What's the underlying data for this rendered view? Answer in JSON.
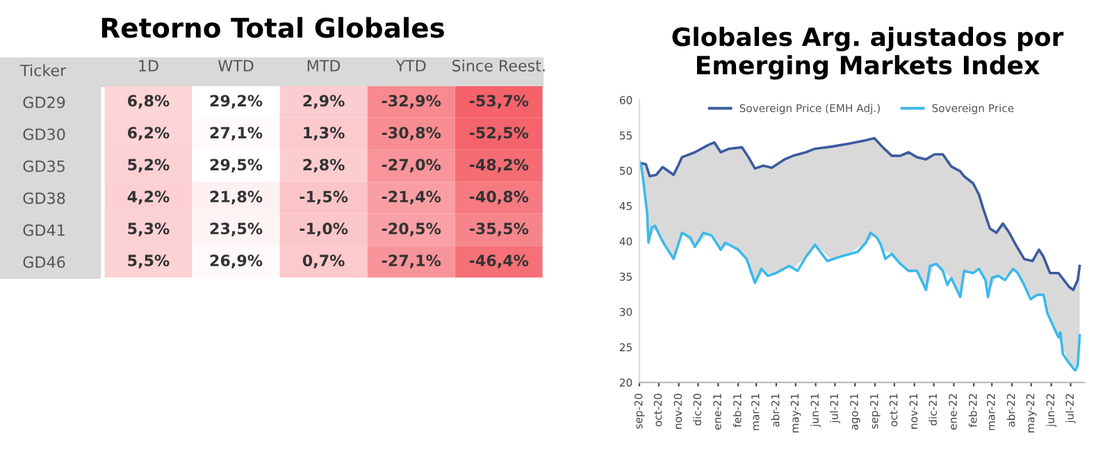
{
  "chart_data": [
    {
      "type": "heatmap",
      "title": "Retorno Total Globales",
      "ylabel": "Ticker",
      "categories": [
        "1D",
        "WTD",
        "MTD",
        "YTD",
        "Since Reest."
      ],
      "y_categories": [
        "GD29",
        "GD30",
        "GD35",
        "GD38",
        "GD41",
        "GD46"
      ],
      "cells": [
        [
          6.8,
          29.2,
          2.9,
          -32.9,
          -53.7
        ],
        [
          6.2,
          27.1,
          1.3,
          -30.8,
          -52.5
        ],
        [
          5.2,
          29.5,
          2.8,
          -27.0,
          -48.2
        ],
        [
          4.2,
          21.8,
          -1.5,
          -21.4,
          -40.8
        ],
        [
          5.3,
          23.5,
          -1.0,
          -20.5,
          -35.5
        ],
        [
          5.5,
          26.9,
          0.7,
          -27.1,
          -46.4
        ]
      ],
      "cell_labels": [
        [
          "6,8%",
          "29,2%",
          "2,9%",
          "-32,9%",
          "-53,7%"
        ],
        [
          "6,2%",
          "27,1%",
          "1,3%",
          "-30,8%",
          "-52,5%"
        ],
        [
          "5,2%",
          "29,5%",
          "2,8%",
          "-27,0%",
          "-48,2%"
        ],
        [
          "4,2%",
          "21,8%",
          "-1,5%",
          "-21,4%",
          "-40,8%"
        ],
        [
          "5,3%",
          "23,5%",
          "-1,0%",
          "-20,5%",
          "-35,5%"
        ],
        [
          "5,5%",
          "26,9%",
          "0,7%",
          "-27,1%",
          "-46,4%"
        ]
      ],
      "colors": [
        "#f5626a",
        "#ffffff"
      ]
    },
    {
      "type": "line",
      "title": "Globales Arg. ajustados por\nEmerging Markets Index",
      "legend": "top",
      "grid": false,
      "xlim": [
        "2020-09-01",
        "2022-07-22"
      ],
      "ylim": [
        20,
        60
      ],
      "yticks": [
        20,
        25,
        30,
        35,
        40,
        45,
        50,
        55,
        60
      ],
      "xticks": [
        {
          "value": "2020-09-01",
          "label": "sep-20"
        },
        {
          "value": "2020-10-01",
          "label": "oct-20"
        },
        {
          "value": "2020-11-01",
          "label": "nov-20"
        },
        {
          "value": "2020-12-01",
          "label": "dic-20"
        },
        {
          "value": "2021-01-01",
          "label": "ene-21"
        },
        {
          "value": "2021-02-01",
          "label": "feb-21"
        },
        {
          "value": "2021-03-01",
          "label": "mar-21"
        },
        {
          "value": "2021-04-01",
          "label": "abr-21"
        },
        {
          "value": "2021-05-01",
          "label": "may-21"
        },
        {
          "value": "2021-06-01",
          "label": "jun-21"
        },
        {
          "value": "2021-07-01",
          "label": "jul-21"
        },
        {
          "value": "2021-08-01",
          "label": "ago-21"
        },
        {
          "value": "2021-09-01",
          "label": "sep-21"
        },
        {
          "value": "2021-10-01",
          "label": "oct-21"
        },
        {
          "value": "2021-11-01",
          "label": "nov-21"
        },
        {
          "value": "2021-12-01",
          "label": "dic-21"
        },
        {
          "value": "2022-01-01",
          "label": "ene-22"
        },
        {
          "value": "2022-02-01",
          "label": "feb-22"
        },
        {
          "value": "2022-03-01",
          "label": "mar-22"
        },
        {
          "value": "2022-04-01",
          "label": "abr-22"
        },
        {
          "value": "2022-05-01",
          "label": "may-22"
        },
        {
          "value": "2022-06-01",
          "label": "jun-22"
        },
        {
          "value": "2022-07-01",
          "label": "jul-22"
        }
      ],
      "series": [
        {
          "name": "Sovereign Price (EMH Adj.)",
          "color": "#3b5b9e",
          "lower": [
            51.3,
            44.5,
            40.6,
            41.8,
            40.0,
            37.5,
            39.3,
            41.2,
            39.2,
            41.0,
            40.3,
            38.8,
            39.5,
            38.2,
            37.2,
            34.1,
            35.8,
            35.3,
            36.2,
            36.1,
            37.8,
            39.5,
            37.4,
            38.2,
            39.8,
            40.8,
            38.7,
            38.2,
            36.8,
            35.8,
            35.8,
            33.1,
            36.7,
            35.8,
            34.8,
            32.1,
            35.8,
            35.5,
            36.1,
            35.0,
            33.0,
            35.0,
            34.7,
            35.6,
            35.8,
            33.8,
            32.0,
            32.4,
            32.4,
            28.8,
            26.4,
            22.7,
            22.0,
            22.4,
            26.7
          ],
          "upper": [
            51.1,
            50.9,
            49.2,
            49.4,
            50.5,
            49.4,
            50.7,
            51.9,
            52.6,
            53.6,
            54.0,
            52.6,
            53.1,
            53.3,
            51.9,
            50.3,
            50.7,
            50.4,
            51.6,
            52.1,
            52.6,
            53.1,
            53.4,
            53.8,
            54.3,
            54.6,
            53.3,
            52.1,
            52.1,
            52.6,
            51.9,
            51.6,
            52.3,
            52.3,
            50.6,
            49.9,
            49.2,
            48.2,
            46.6,
            44.5,
            41.8,
            41.2,
            42.5,
            41.2,
            39.5,
            37.5,
            37.2,
            38.8,
            37.8,
            35.5,
            35.5,
            33.5,
            33.1,
            34.5,
            36.5
          ],
          "x": [
            "2020-09-01",
            "2020-09-11",
            "2020-09-17",
            "2020-09-27",
            "2020-10-07",
            "2020-10-24",
            "2020-10-31",
            "2020-11-06",
            "2020-11-26",
            "2020-12-16",
            "2020-12-26",
            "2021-01-05",
            "2021-01-18",
            "2021-02-07",
            "2021-02-17",
            "2021-02-27",
            "2021-03-12",
            "2021-03-25",
            "2021-04-14",
            "2021-04-27",
            "2021-05-17",
            "2021-05-31",
            "2021-06-26",
            "2021-07-22",
            "2021-08-18",
            "2021-08-31",
            "2021-09-13",
            "2021-09-27",
            "2021-10-10",
            "2021-10-23",
            "2021-11-05",
            "2021-11-19",
            "2021-12-02",
            "2021-12-15",
            "2021-12-28",
            "2022-01-11",
            "2022-01-17",
            "2022-01-31",
            "2022-02-09",
            "2022-02-16",
            "2022-02-26",
            "2022-03-08",
            "2022-03-18",
            "2022-03-28",
            "2022-04-07",
            "2022-04-20",
            "2022-05-03",
            "2022-05-13",
            "2022-05-20",
            "2022-05-30",
            "2022-06-12",
            "2022-06-29",
            "2022-07-05",
            "2022-07-12",
            "2022-07-15"
          ],
          "values": [
            51.1,
            50.9,
            49.2,
            49.4,
            50.5,
            49.4,
            50.7,
            51.9,
            52.6,
            53.6,
            54.0,
            52.6,
            53.1,
            53.3,
            51.9,
            50.3,
            50.7,
            50.4,
            51.6,
            52.1,
            52.6,
            53.1,
            53.4,
            53.8,
            54.3,
            54.6,
            53.3,
            52.1,
            52.1,
            52.6,
            51.9,
            51.6,
            52.3,
            52.3,
            50.6,
            49.9,
            49.2,
            48.2,
            46.6,
            44.5,
            41.8,
            41.2,
            42.5,
            41.2,
            39.5,
            37.5,
            37.2,
            38.8,
            37.8,
            35.5,
            35.5,
            33.5,
            33.1,
            34.5,
            36.5
          ]
        },
        {
          "name": "Sovereign Price",
          "color": "#3cb9ea",
          "x": [
            "2020-09-01",
            "2020-09-04",
            "2020-09-07",
            "2020-09-13",
            "2020-09-15",
            "2020-09-20",
            "2020-09-25",
            "2020-10-04",
            "2020-10-10",
            "2020-10-24",
            "2020-11-06",
            "2020-11-19",
            "2020-11-26",
            "2020-12-09",
            "2020-12-22",
            "2021-01-05",
            "2021-01-12",
            "2021-02-01",
            "2021-02-14",
            "2021-02-27",
            "2021-03-09",
            "2021-03-19",
            "2021-04-01",
            "2021-04-21",
            "2021-05-04",
            "2021-05-17",
            "2021-05-31",
            "2021-06-19",
            "2021-07-09",
            "2021-08-05",
            "2021-08-18",
            "2021-08-25",
            "2021-09-04",
            "2021-09-10",
            "2021-09-17",
            "2021-09-27",
            "2021-10-10",
            "2021-10-23",
            "2021-11-05",
            "2021-11-19",
            "2021-11-25",
            "2021-12-05",
            "2021-12-15",
            "2021-12-22",
            "2021-12-28",
            "2022-01-11",
            "2022-01-17",
            "2022-01-31",
            "2022-02-09",
            "2022-02-19",
            "2022-02-23",
            "2022-03-01",
            "2022-03-11",
            "2022-03-21",
            "2022-04-03",
            "2022-04-10",
            "2022-04-20",
            "2022-04-30",
            "2022-05-10",
            "2022-05-20",
            "2022-05-26",
            "2022-06-05",
            "2022-06-12",
            "2022-06-15",
            "2022-06-19",
            "2022-06-29",
            "2022-07-05",
            "2022-07-08",
            "2022-07-12",
            "2022-07-15"
          ],
          "values": [
            51.3,
            50.6,
            48.6,
            43.9,
            39.8,
            41.9,
            42.2,
            40.5,
            39.5,
            37.5,
            41.2,
            40.5,
            39.2,
            41.2,
            40.8,
            38.8,
            39.8,
            38.8,
            37.5,
            34.1,
            36.1,
            35.1,
            35.5,
            36.5,
            35.8,
            37.8,
            39.5,
            37.2,
            37.8,
            38.5,
            39.8,
            41.2,
            40.5,
            39.5,
            37.5,
            38.2,
            36.8,
            35.8,
            35.8,
            33.1,
            36.5,
            36.8,
            35.8,
            33.8,
            34.8,
            32.1,
            35.8,
            35.5,
            36.1,
            34.5,
            32.1,
            34.8,
            35.1,
            34.5,
            36.1,
            35.5,
            33.8,
            31.8,
            32.4,
            32.4,
            29.8,
            27.8,
            26.4,
            27.1,
            24.0,
            22.7,
            22.0,
            21.7,
            22.4,
            26.7
          ]
        }
      ]
    }
  ]
}
